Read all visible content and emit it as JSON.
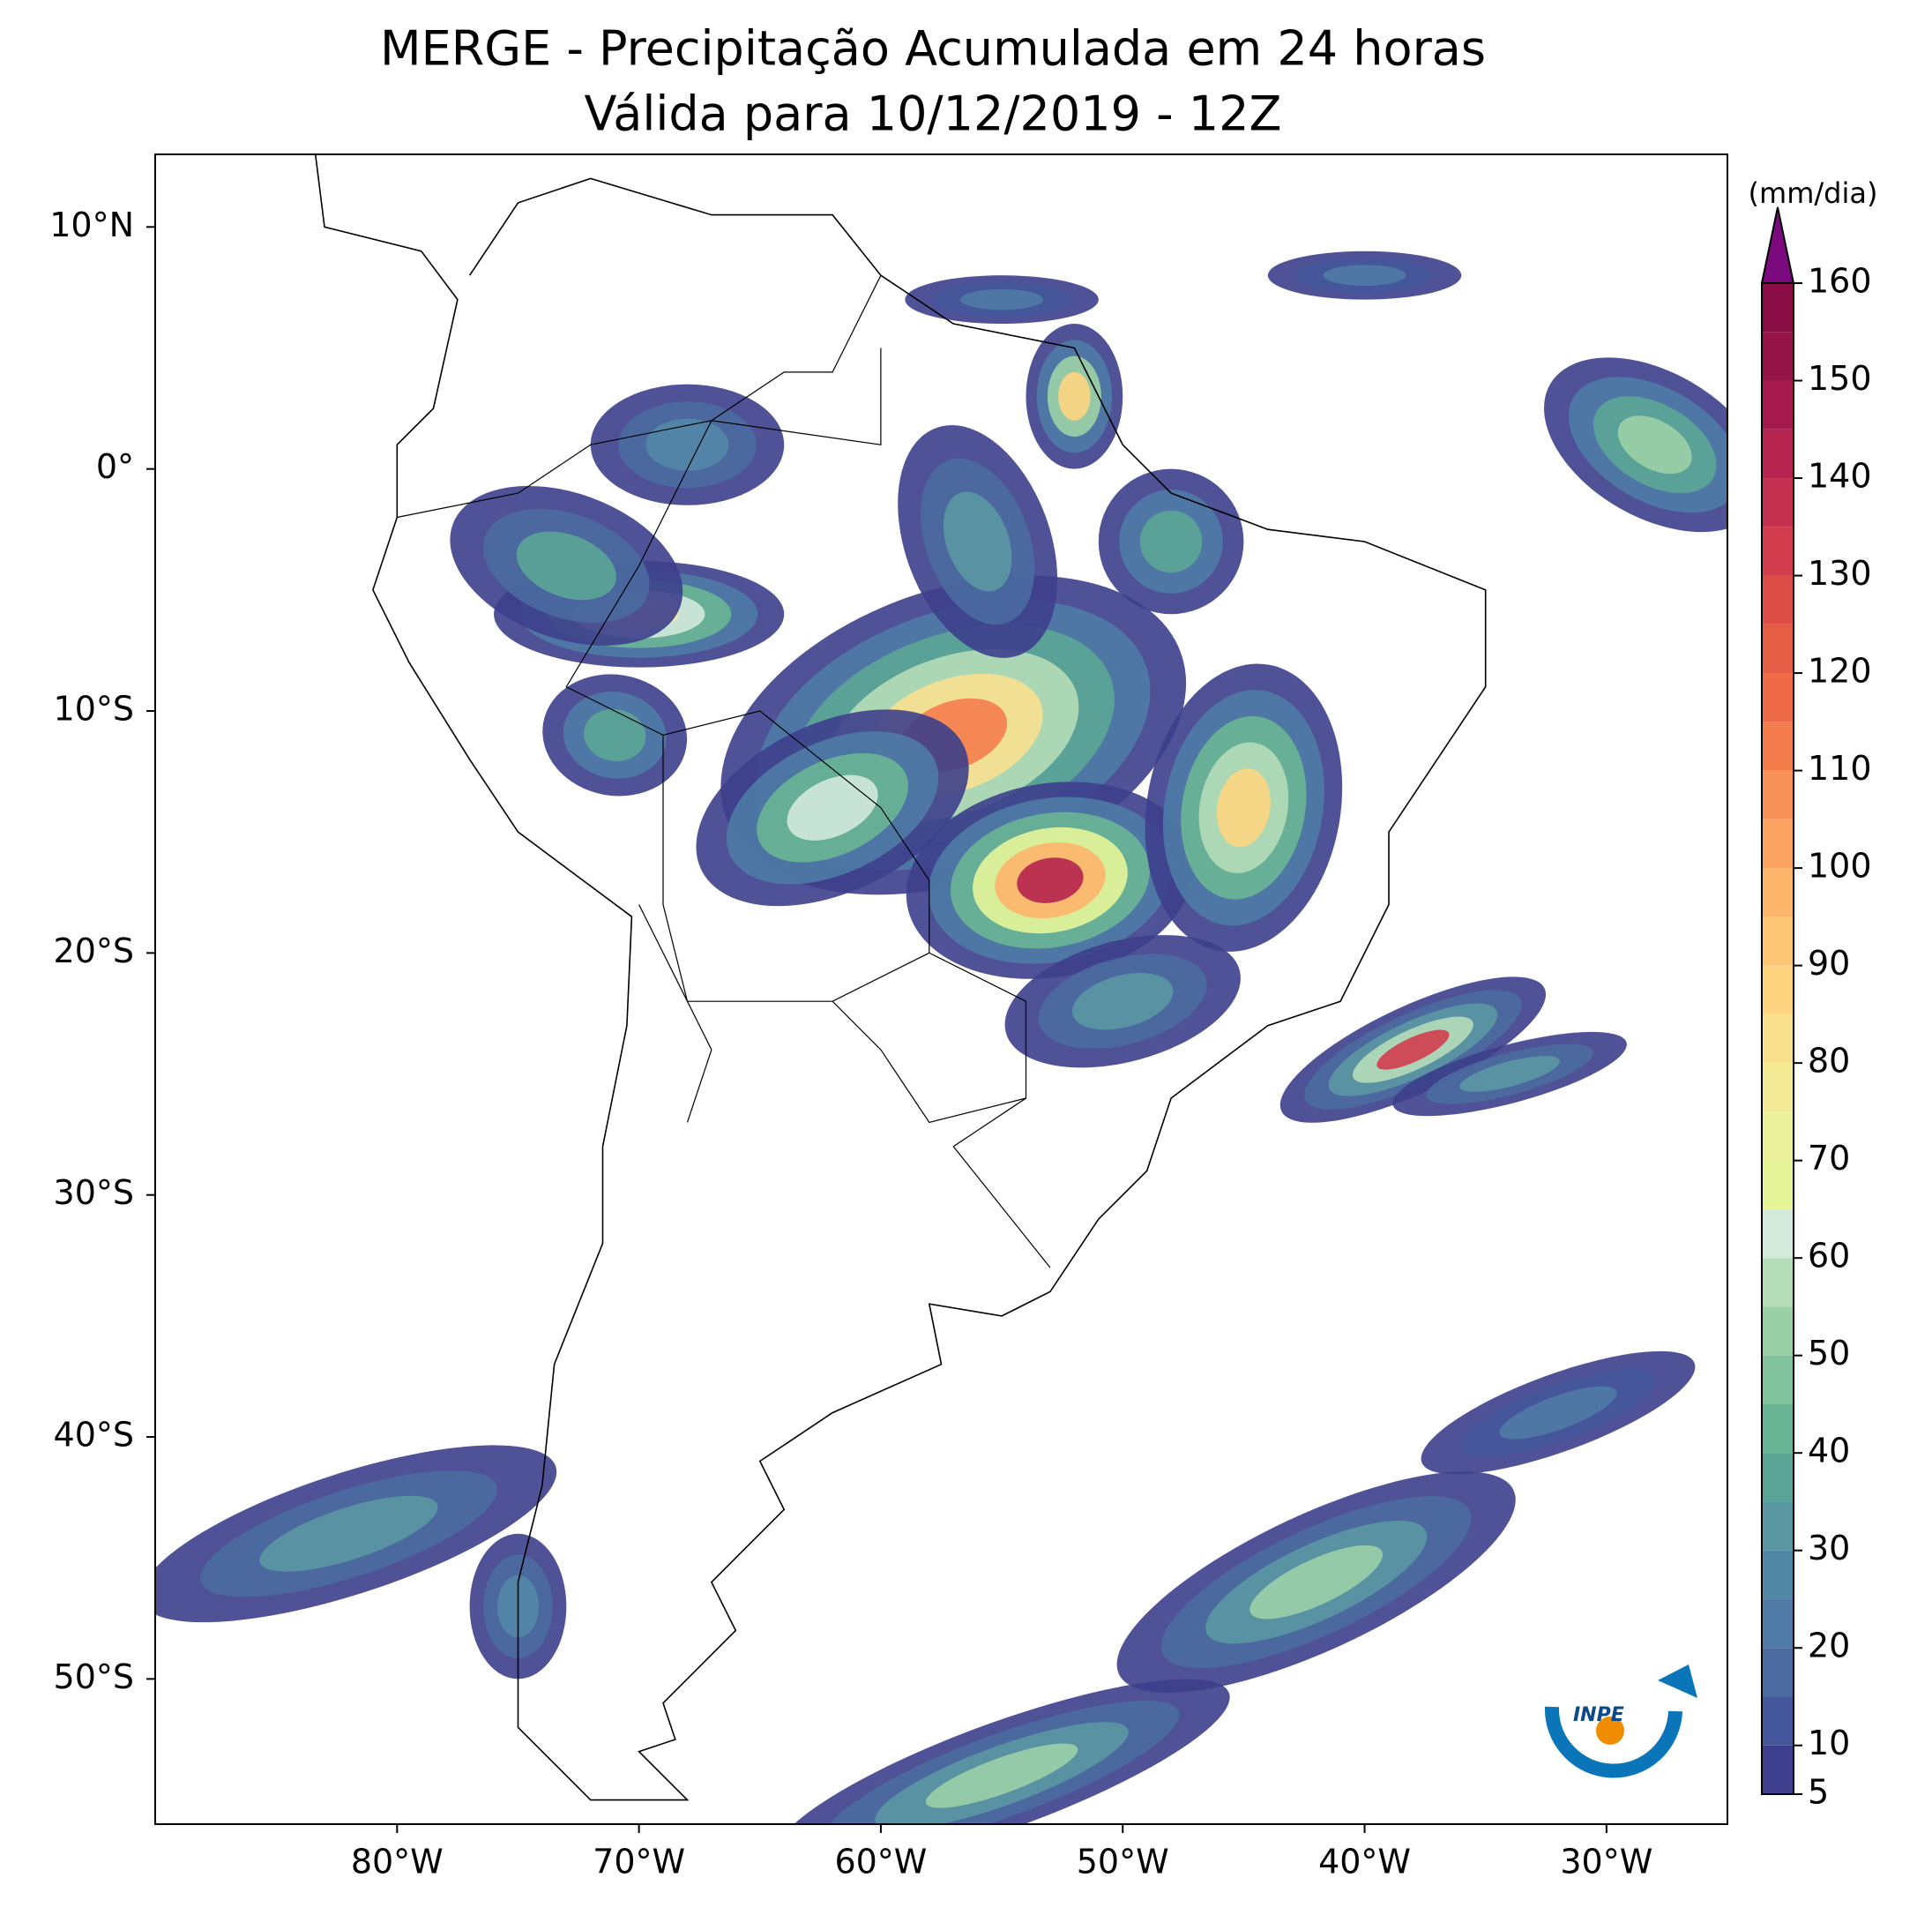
{
  "title": "MERGE - Precipitação Acumulada em 24 horas",
  "subtitle": "Válida para 10/12/2019 - 12Z",
  "map": {
    "xlim": [
      -90,
      -25
    ],
    "ylim": [
      -56,
      13
    ],
    "xticks": [
      {
        "value": -80,
        "label": "80°W"
      },
      {
        "value": -70,
        "label": "70°W"
      },
      {
        "value": -60,
        "label": "60°W"
      },
      {
        "value": -50,
        "label": "50°W"
      },
      {
        "value": -40,
        "label": "40°W"
      },
      {
        "value": -30,
        "label": "30°W"
      }
    ],
    "yticks": [
      {
        "value": 10,
        "label": "10°N"
      },
      {
        "value": 0,
        "label": "0°"
      },
      {
        "value": -10,
        "label": "10°S"
      },
      {
        "value": -20,
        "label": "20°S"
      },
      {
        "value": -30,
        "label": "30°S"
      },
      {
        "value": -40,
        "label": "40°S"
      },
      {
        "value": -50,
        "label": "50°S"
      }
    ]
  },
  "colorbar": {
    "label": "(mm/dia)",
    "lim": [
      5,
      160
    ],
    "ticks": [
      5,
      10,
      20,
      30,
      40,
      50,
      60,
      70,
      80,
      90,
      100,
      110,
      120,
      130,
      140,
      150,
      160
    ],
    "bounds": [
      5,
      10,
      15,
      20,
      25,
      30,
      35,
      40,
      45,
      50,
      55,
      60,
      65,
      70,
      75,
      80,
      85,
      90,
      95,
      100,
      105,
      110,
      115,
      120,
      125,
      130,
      135,
      140,
      145,
      150,
      155,
      160
    ],
    "colors": [
      "#3d3f8c",
      "#44579a",
      "#4a6aa0",
      "#4f7ba6",
      "#5287a6",
      "#5a97a3",
      "#5ba597",
      "#69b595",
      "#81c39c",
      "#9bd0a7",
      "#b5ddb8",
      "#d2e9dc",
      "#e6f598",
      "#ecf19b",
      "#f3ea96",
      "#f8e08f",
      "#fdd581",
      "#fdc675",
      "#fdb56b",
      "#fca461",
      "#f8925a",
      "#f47d4e",
      "#ef6a46",
      "#e45d45",
      "#dc4c47",
      "#d13d4d",
      "#c43150",
      "#b5244e",
      "#a51a4b",
      "#961548",
      "#8a0d45"
    ],
    "extend_color": "#7b0a7f"
  },
  "logo": "INPE"
}
